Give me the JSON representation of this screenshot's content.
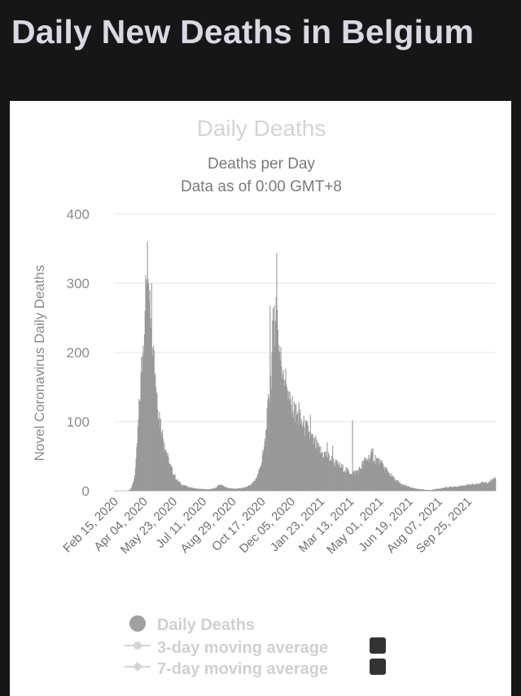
{
  "page": {
    "heading": "Daily New Deaths in Belgium"
  },
  "chart_data": {
    "type": "bar",
    "title": "Daily Deaths",
    "subtitle_lines": [
      "Deaths per Day",
      "Data as of 0:00 GMT+8"
    ],
    "ylabel": "Novel Coronavirus Daily Deaths",
    "xlabel": "",
    "ylim": [
      0,
      400
    ],
    "yticks": [
      0,
      100,
      200,
      300,
      400
    ],
    "x_tick_labels": [
      "Feb 15, 2020",
      "Apr 04, 2020",
      "May 23, 2020",
      "Jul 11, 2020",
      "Aug 29, 2020",
      "Oct 17, 2020",
      "Dec 05, 2020",
      "Jan 23, 2021",
      "Mar 13, 2021",
      "May 01, 2021",
      "Jun 19, 2021",
      "Aug 07, 2021",
      "Sep 25, 2021"
    ],
    "grid": true,
    "bar_color": "#999999",
    "x_start": "2020-02-15",
    "x_end": "2021-11-10",
    "series_anchors": [
      [
        "2020-02-15",
        0
      ],
      [
        "2020-03-09",
        0
      ],
      [
        "2020-03-12",
        2
      ],
      [
        "2020-03-16",
        8
      ],
      [
        "2020-03-19",
        18
      ],
      [
        "2020-03-22",
        40
      ],
      [
        "2020-03-25",
        85
      ],
      [
        "2020-03-28",
        130
      ],
      [
        "2020-03-31",
        175
      ],
      [
        "2020-04-03",
        210
      ],
      [
        "2020-04-06",
        260
      ],
      [
        "2020-04-08",
        300
      ],
      [
        "2020-04-10",
        318
      ],
      [
        "2020-04-12",
        300
      ],
      [
        "2020-04-14",
        290
      ],
      [
        "2020-04-17",
        270
      ],
      [
        "2020-04-20",
        210
      ],
      [
        "2020-04-23",
        170
      ],
      [
        "2020-04-26",
        140
      ],
      [
        "2020-04-30",
        110
      ],
      [
        "2020-05-04",
        85
      ],
      [
        "2020-05-08",
        70
      ],
      [
        "2020-05-12",
        55
      ],
      [
        "2020-05-16",
        40
      ],
      [
        "2020-05-20",
        32
      ],
      [
        "2020-05-25",
        22
      ],
      [
        "2020-05-30",
        15
      ],
      [
        "2020-06-05",
        10
      ],
      [
        "2020-06-12",
        7
      ],
      [
        "2020-06-20",
        5
      ],
      [
        "2020-07-01",
        3
      ],
      [
        "2020-07-20",
        2
      ],
      [
        "2020-08-01",
        4
      ],
      [
        "2020-08-08",
        9
      ],
      [
        "2020-08-14",
        7
      ],
      [
        "2020-08-22",
        4
      ],
      [
        "2020-09-05",
        3
      ],
      [
        "2020-09-20",
        5
      ],
      [
        "2020-10-01",
        10
      ],
      [
        "2020-10-08",
        18
      ],
      [
        "2020-10-15",
        35
      ],
      [
        "2020-10-20",
        55
      ],
      [
        "2020-10-25",
        90
      ],
      [
        "2020-10-29",
        135
      ],
      [
        "2020-11-01",
        160
      ],
      [
        "2020-11-04",
        210
      ],
      [
        "2020-11-07",
        268
      ],
      [
        "2020-11-09",
        190
      ],
      [
        "2020-11-11",
        344
      ],
      [
        "2020-11-13",
        230
      ],
      [
        "2020-11-16",
        200
      ],
      [
        "2020-11-19",
        180
      ],
      [
        "2020-11-22",
        175
      ],
      [
        "2020-11-25",
        160
      ],
      [
        "2020-11-29",
        145
      ],
      [
        "2020-12-03",
        125
      ],
      [
        "2020-12-08",
        115
      ],
      [
        "2020-12-14",
        110
      ],
      [
        "2020-12-20",
        102
      ],
      [
        "2020-12-27",
        92
      ],
      [
        "2021-01-03",
        85
      ],
      [
        "2021-01-10",
        72
      ],
      [
        "2021-01-18",
        62
      ],
      [
        "2021-01-25",
        55
      ],
      [
        "2021-02-01",
        52
      ],
      [
        "2021-02-10",
        45
      ],
      [
        "2021-02-20",
        38
      ],
      [
        "2021-03-01",
        33
      ],
      [
        "2021-03-10",
        28
      ],
      [
        "2021-03-20",
        26
      ],
      [
        "2021-03-30",
        32
      ],
      [
        "2021-04-05",
        42
      ],
      [
        "2021-04-12",
        47
      ],
      [
        "2021-04-18",
        52
      ],
      [
        "2021-04-24",
        48
      ],
      [
        "2021-05-02",
        40
      ],
      [
        "2021-05-10",
        33
      ],
      [
        "2021-05-18",
        25
      ],
      [
        "2021-05-26",
        17
      ],
      [
        "2021-06-05",
        10
      ],
      [
        "2021-06-15",
        7
      ],
      [
        "2021-06-25",
        4
      ],
      [
        "2021-07-10",
        2
      ],
      [
        "2021-07-25",
        1
      ],
      [
        "2021-08-05",
        3
      ],
      [
        "2021-08-20",
        5
      ],
      [
        "2021-09-05",
        6
      ],
      [
        "2021-09-20",
        8
      ],
      [
        "2021-10-05",
        9
      ],
      [
        "2021-10-20",
        12
      ],
      [
        "2021-11-01",
        14
      ],
      [
        "2021-11-10",
        17
      ]
    ],
    "spikes": [
      [
        "2021-03-17",
        102
      ],
      [
        "2021-04-20",
        62
      ],
      [
        "2020-11-28",
        150
      ],
      [
        "2020-12-12",
        125
      ],
      [
        "2020-12-18",
        128
      ],
      [
        "2021-01-06",
        110
      ],
      [
        "2021-01-15",
        80
      ],
      [
        "2021-02-03",
        70
      ],
      [
        "2021-02-12",
        65
      ],
      [
        "2020-10-31",
        268
      ],
      [
        "2020-11-09",
        245
      ]
    ],
    "legend": [
      {
        "label": "Daily Deaths",
        "marker": "circle"
      },
      {
        "label": "3-day moving average",
        "marker": "circle-line"
      },
      {
        "label": "7-day moving average",
        "marker": "diamond-line"
      }
    ]
  }
}
